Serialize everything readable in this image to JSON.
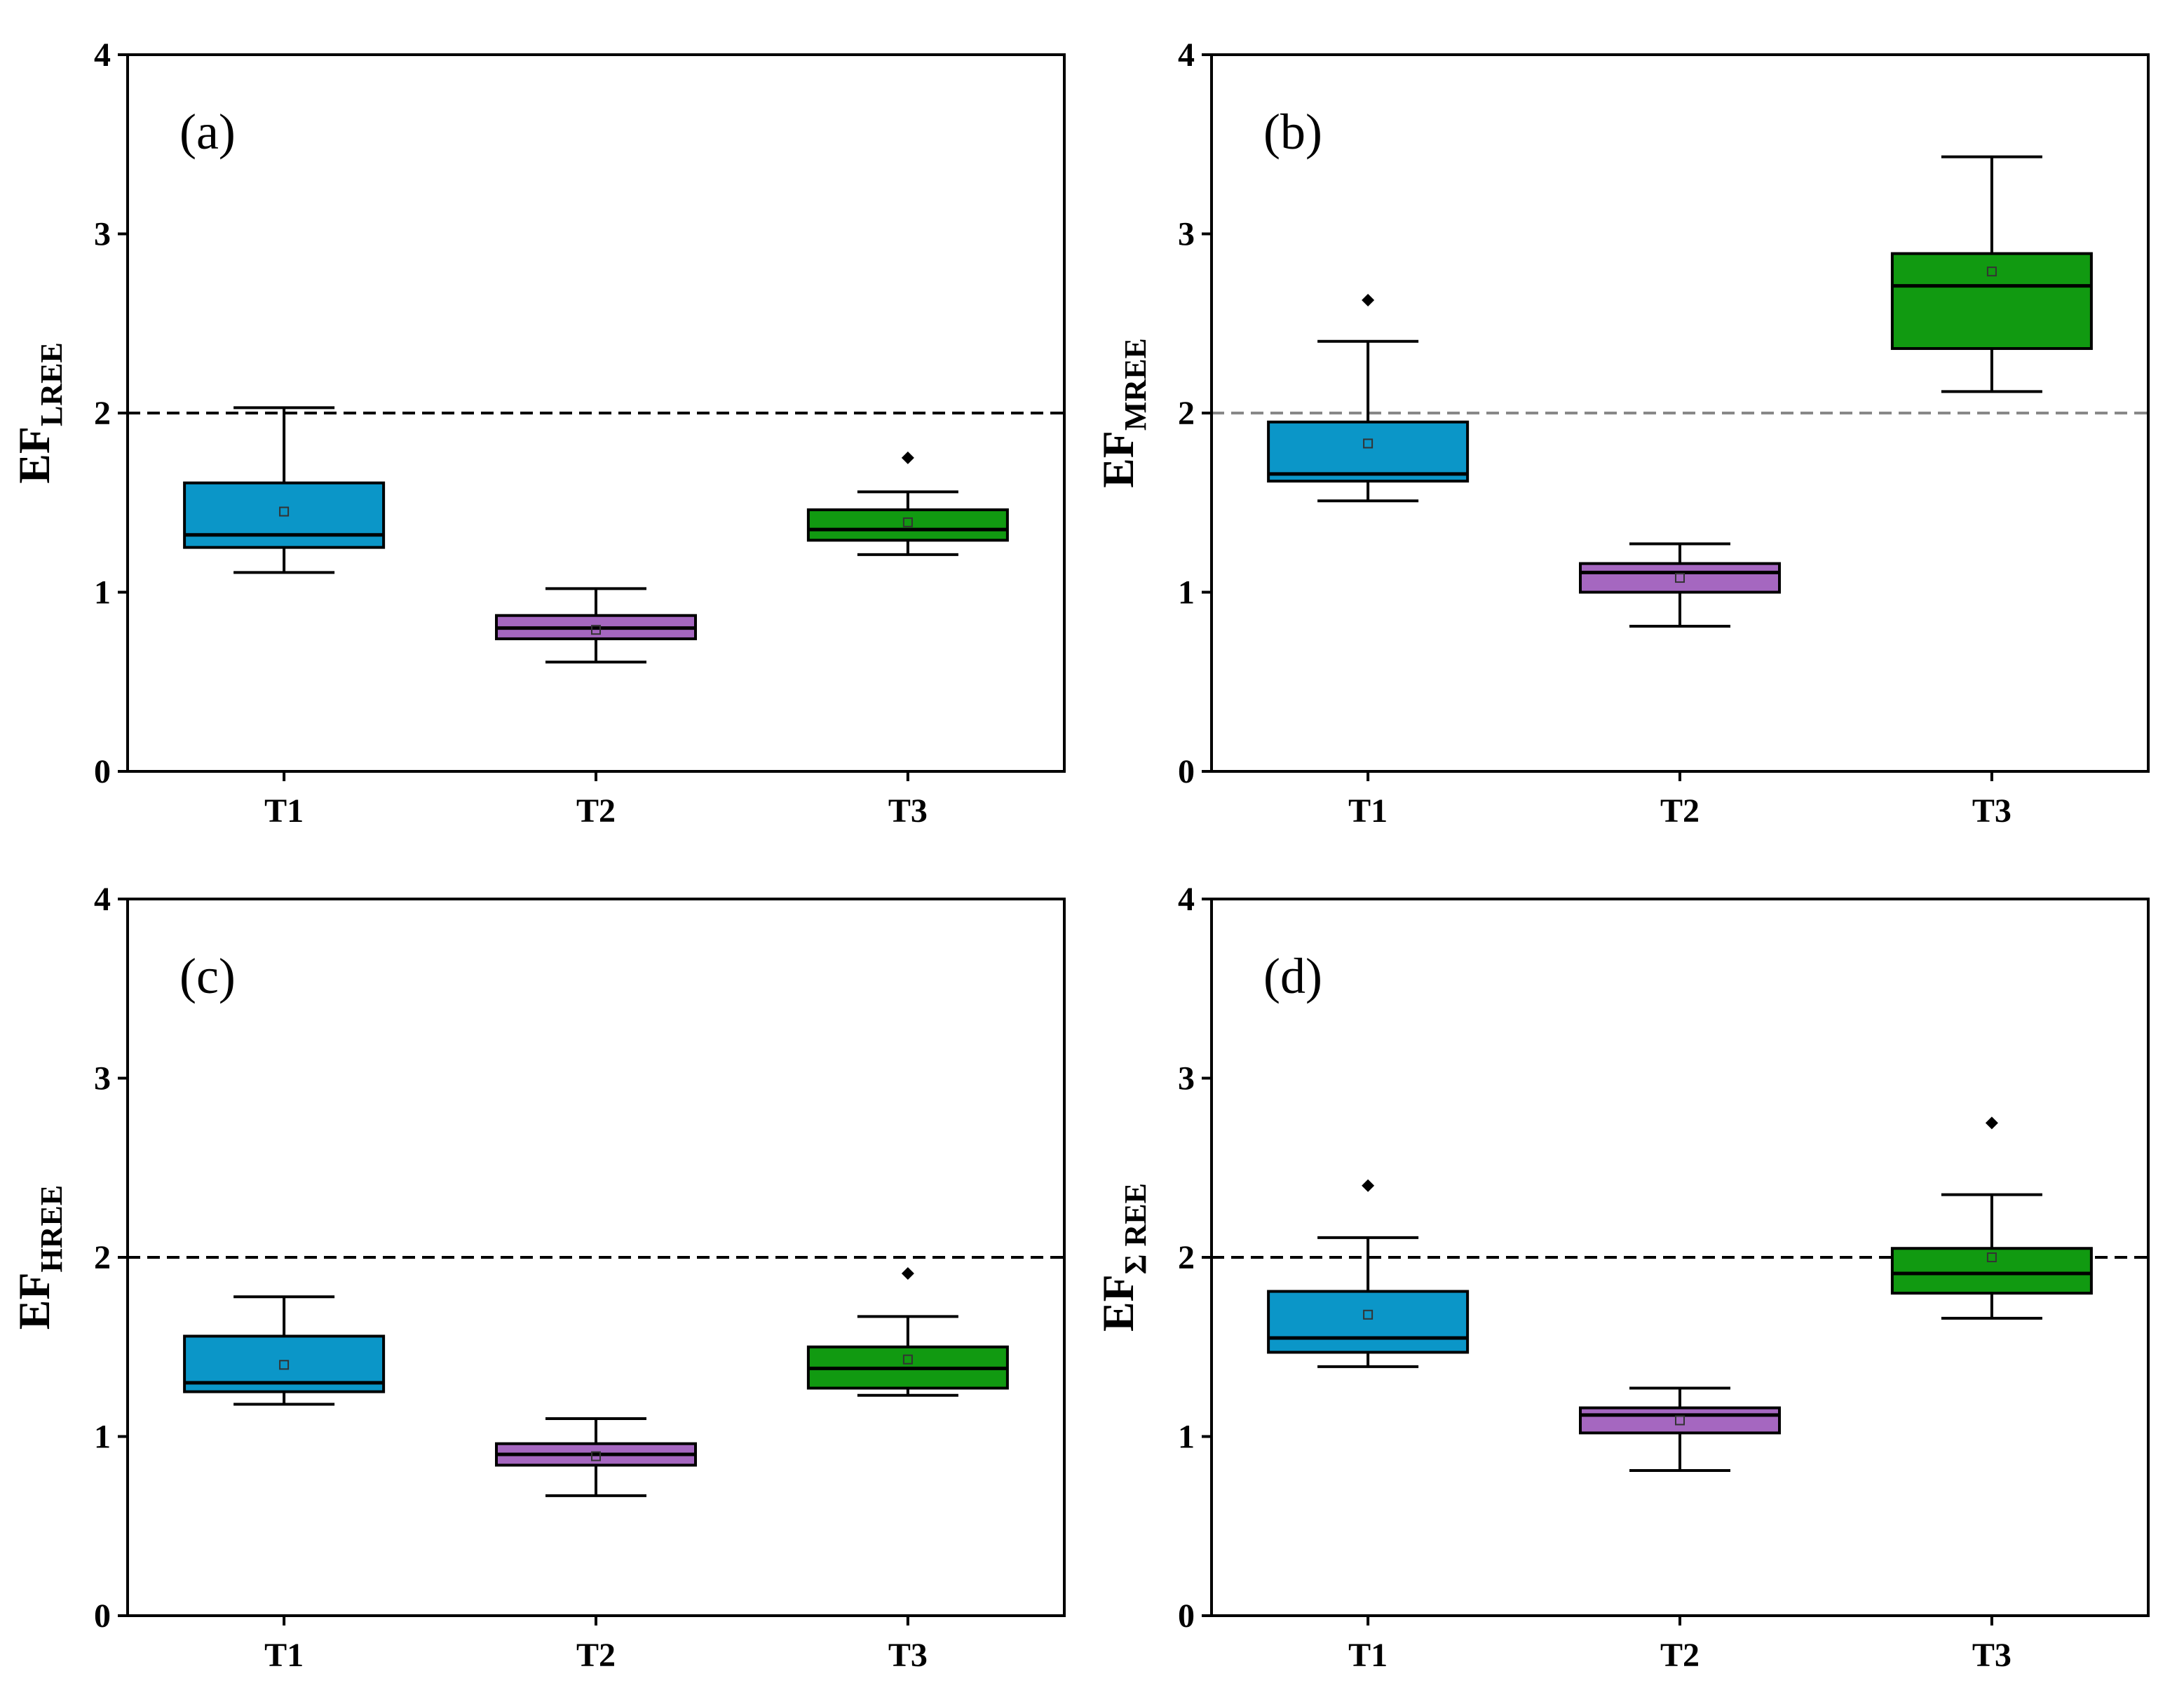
{
  "chart_data": [
    {
      "type": "box",
      "panel_label": "(a)",
      "ylabel": {
        "main": "EF",
        "sub": "LREE"
      },
      "categories": [
        "T1",
        "T2",
        "T3"
      ],
      "y_ticks": [
        "0",
        "1",
        "2",
        "3",
        "4"
      ],
      "ylim": [
        0,
        4
      ],
      "reference_line": 2,
      "reference_color": "#000000",
      "boxes": [
        {
          "name": "T1",
          "color": "#0b96c8",
          "whisker_low": 1.11,
          "q1": 1.25,
          "median": 1.32,
          "q3": 1.61,
          "whisker_high": 2.03,
          "mean": 1.45,
          "outliers": []
        },
        {
          "name": "T2",
          "color": "#a567c0",
          "whisker_low": 0.61,
          "q1": 0.74,
          "median": 0.8,
          "q3": 0.87,
          "whisker_high": 1.02,
          "mean": 0.79,
          "outliers": []
        },
        {
          "name": "T3",
          "color": "#119a11",
          "whisker_low": 1.21,
          "q1": 1.29,
          "median": 1.35,
          "q3": 1.46,
          "whisker_high": 1.56,
          "mean": 1.39,
          "outliers": [
            1.75
          ]
        }
      ]
    },
    {
      "type": "box",
      "panel_label": "(b)",
      "ylabel": {
        "main": "EF",
        "sub": "MREE"
      },
      "categories": [
        "T1",
        "T2",
        "T3"
      ],
      "y_ticks": [
        "0",
        "1",
        "2",
        "3",
        "4"
      ],
      "ylim": [
        0,
        4
      ],
      "reference_line": 2,
      "reference_color": "#888888",
      "boxes": [
        {
          "name": "T1",
          "color": "#0b96c8",
          "whisker_low": 1.51,
          "q1": 1.62,
          "median": 1.66,
          "q3": 1.95,
          "whisker_high": 2.4,
          "mean": 1.83,
          "outliers": [
            2.63
          ]
        },
        {
          "name": "T2",
          "color": "#a567c0",
          "whisker_low": 0.81,
          "q1": 1.0,
          "median": 1.11,
          "q3": 1.16,
          "whisker_high": 1.27,
          "mean": 1.08,
          "outliers": []
        },
        {
          "name": "T3",
          "color": "#119a11",
          "whisker_low": 2.12,
          "q1": 2.36,
          "median": 2.71,
          "q3": 2.89,
          "whisker_high": 3.43,
          "mean": 2.79,
          "outliers": []
        }
      ]
    },
    {
      "type": "box",
      "panel_label": "(c)",
      "ylabel": {
        "main": "EF",
        "sub": "HREE"
      },
      "categories": [
        "T1",
        "T2",
        "T3"
      ],
      "y_ticks": [
        "0",
        "1",
        "2",
        "3",
        "4"
      ],
      "ylim": [
        0,
        4
      ],
      "reference_line": 2,
      "reference_color": "#000000",
      "boxes": [
        {
          "name": "T1",
          "color": "#0b96c8",
          "whisker_low": 1.18,
          "q1": 1.25,
          "median": 1.3,
          "q3": 1.56,
          "whisker_high": 1.78,
          "mean": 1.4,
          "outliers": []
        },
        {
          "name": "T2",
          "color": "#a567c0",
          "whisker_low": 0.67,
          "q1": 0.84,
          "median": 0.9,
          "q3": 0.96,
          "whisker_high": 1.1,
          "mean": 0.89,
          "outliers": []
        },
        {
          "name": "T3",
          "color": "#119a11",
          "whisker_low": 1.23,
          "q1": 1.27,
          "median": 1.38,
          "q3": 1.5,
          "whisker_high": 1.67,
          "mean": 1.43,
          "outliers": [
            1.91
          ]
        }
      ]
    },
    {
      "type": "box",
      "panel_label": "(d)",
      "ylabel": {
        "main": "EF",
        "sub": "Σ REE"
      },
      "categories": [
        "T1",
        "T2",
        "T3"
      ],
      "y_ticks": [
        "0",
        "1",
        "2",
        "3",
        "4"
      ],
      "ylim": [
        0,
        4
      ],
      "reference_line": 2,
      "reference_color": "#000000",
      "boxes": [
        {
          "name": "T1",
          "color": "#0b96c8",
          "whisker_low": 1.39,
          "q1": 1.47,
          "median": 1.55,
          "q3": 1.81,
          "whisker_high": 2.11,
          "mean": 1.68,
          "outliers": [
            2.4
          ]
        },
        {
          "name": "T2",
          "color": "#a567c0",
          "whisker_low": 0.81,
          "q1": 1.02,
          "median": 1.12,
          "q3": 1.16,
          "whisker_high": 1.27,
          "mean": 1.09,
          "outliers": []
        },
        {
          "name": "T3",
          "color": "#119a11",
          "whisker_low": 1.66,
          "q1": 1.8,
          "median": 1.91,
          "q3": 2.05,
          "whisker_high": 2.35,
          "mean": 2.0,
          "outliers": [
            2.75
          ]
        }
      ]
    }
  ]
}
